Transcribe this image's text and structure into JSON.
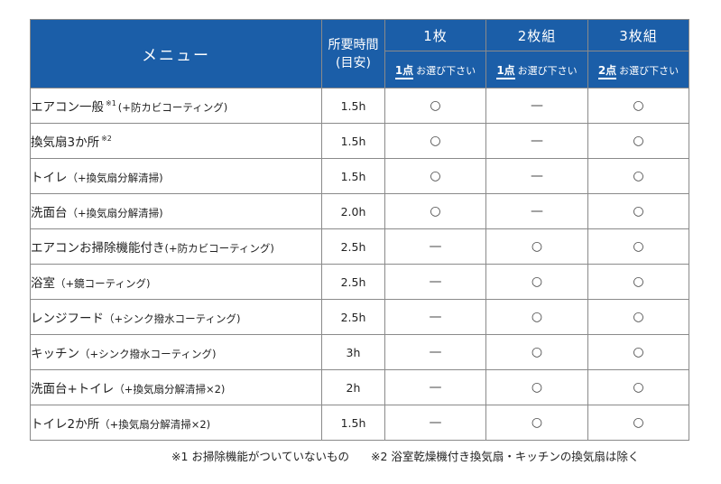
{
  "header": {
    "menu": "メニュー",
    "time": "所要時間(目安)",
    "plans": [
      {
        "title": "1枚",
        "count": "1点",
        "select": "お選び下さい"
      },
      {
        "title": "2枚組",
        "count": "1点",
        "select": "お選び下さい"
      },
      {
        "title": "3枚組",
        "count": "2点",
        "select": "お選び下さい"
      }
    ]
  },
  "rows": [
    {
      "name": "エアコン一般",
      "sup": "※1",
      "note": "(+防カビコーティング)",
      "time": "1.5h",
      "p1": "○",
      "p2": "—",
      "p3": "○"
    },
    {
      "name": "換気扇3か所",
      "sup": "※2",
      "note": "",
      "time": "1.5h",
      "p1": "○",
      "p2": "—",
      "p3": "○"
    },
    {
      "name": "トイレ",
      "sup": "",
      "note": "（+換気扇分解清掃)",
      "time": "1.5h",
      "p1": "○",
      "p2": "—",
      "p3": "○"
    },
    {
      "name": "洗面台",
      "sup": "",
      "note": "（+換気扇分解清掃)",
      "time": "2.0h",
      "p1": "○",
      "p2": "—",
      "p3": "○"
    },
    {
      "name": "エアコンお掃除機能付き",
      "sup": "",
      "note": "(+防カビコーティング)",
      "time": "2.5h",
      "p1": "—",
      "p2": "○",
      "p3": "○"
    },
    {
      "name": "浴室",
      "sup": "",
      "note": "（+鏡コーティング)",
      "time": "2.5h",
      "p1": "—",
      "p2": "○",
      "p3": "○"
    },
    {
      "name": "レンジフード",
      "sup": "",
      "note": "（+シンク撥水コーティング)",
      "time": "2.5h",
      "p1": "—",
      "p2": "○",
      "p3": "○"
    },
    {
      "name": "キッチン",
      "sup": "",
      "note": "（+シンク撥水コーティング)",
      "time": "3h",
      "p1": "—",
      "p2": "○",
      "p3": "○"
    },
    {
      "name": "洗面台+トイレ",
      "sup": "",
      "note": "（+換気扇分解清掃×2)",
      "time": "2h",
      "p1": "—",
      "p2": "○",
      "p3": "○"
    },
    {
      "name": "トイレ2か所",
      "sup": "",
      "note": "（+換気扇分解清掃×2)",
      "time": "1.5h",
      "p1": "—",
      "p2": "○",
      "p3": "○"
    }
  ],
  "footnotes": [
    "※1 お掃除機能がついていないもの",
    "※2 浴室乾燥機付き換気扇・キッチンの換気扇は除く"
  ]
}
